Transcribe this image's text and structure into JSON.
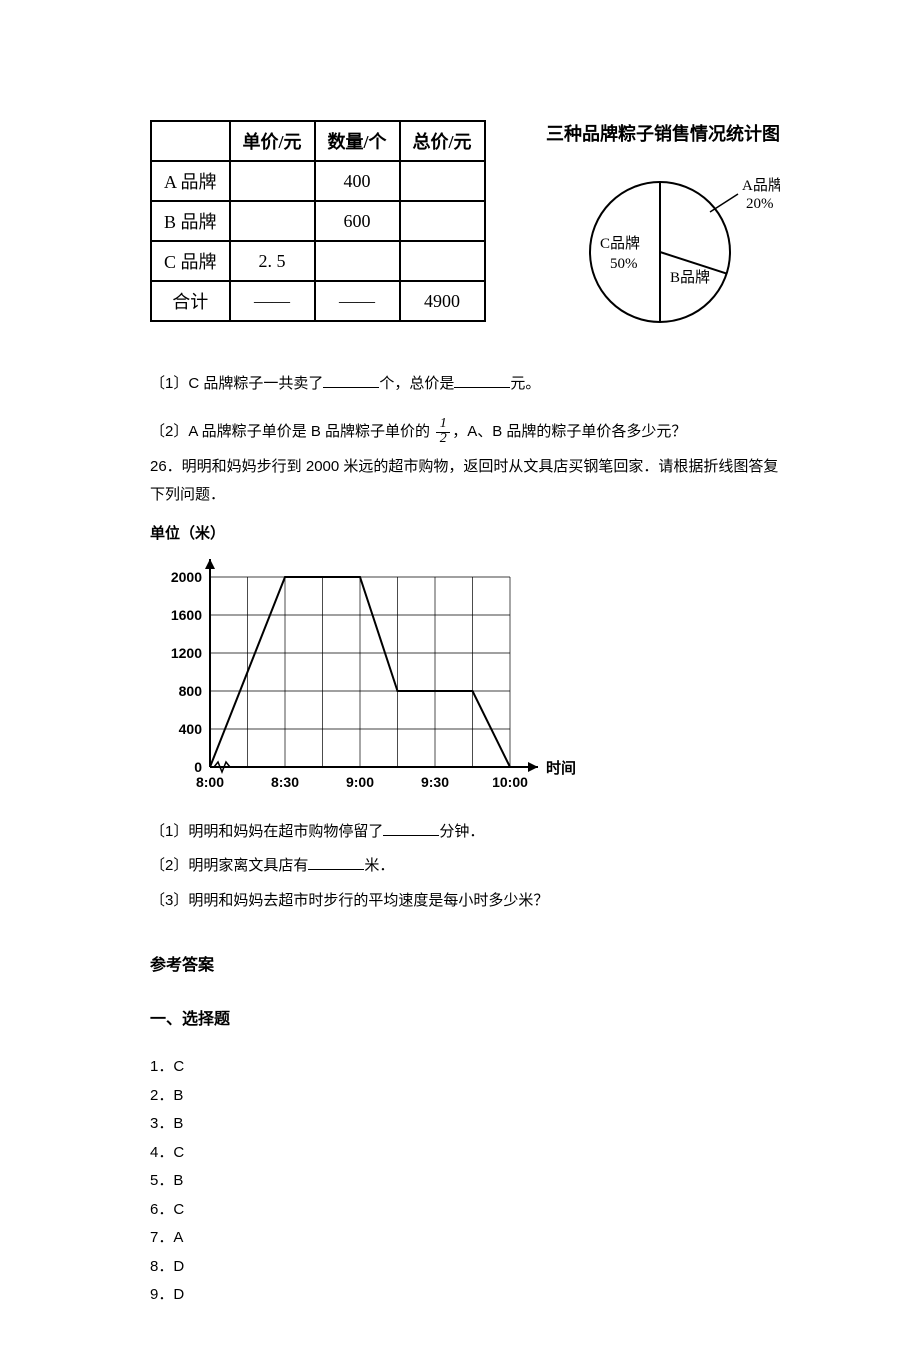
{
  "pie_chart": {
    "title": "三种品牌粽子销售情况统计图",
    "type": "pie",
    "background_color": "#ffffff",
    "slice_border_color": "#000000",
    "slices": [
      {
        "label": "A品牌",
        "value_label": "20%",
        "percent": 20,
        "color": "#ffffff"
      },
      {
        "label": "B品牌",
        "value_label": "",
        "percent": 30,
        "color": "#ffffff"
      },
      {
        "label": "C品牌",
        "value_label": "50%",
        "percent": 50,
        "color": "#ffffff"
      }
    ]
  },
  "brand_table": {
    "columns": [
      "",
      "单价/元",
      "数量/个",
      "总价/元"
    ],
    "rows": [
      [
        "A 品牌",
        "",
        "400",
        ""
      ],
      [
        "B 品牌",
        "",
        "600",
        ""
      ],
      [
        "C 品牌",
        "2. 5",
        "",
        ""
      ],
      [
        "合计",
        "——",
        "——",
        "4900"
      ]
    ]
  },
  "q1_prefix": "〔1〕C 品牌粽子一共卖了",
  "q1_mid": "个，总价是",
  "q1_suffix": "元。",
  "q2_prefix": "〔2〕A 品牌粽子单价是 B 品牌粽子单价的",
  "q2_suffix": "，A、B 品牌的粽子单价各多少元？",
  "frac_num": "1",
  "frac_den": "2",
  "q26": "26．明明和妈妈步行到 2000 米远的超市购物，返回时从文具店买钢笔回家．请根据折线图答复下列问题．",
  "line_chart": {
    "type": "line",
    "y_label": "单位（米）",
    "x_label": "时间",
    "ylim": [
      0,
      2000
    ],
    "ytick_step": 400,
    "yticks": [
      0,
      400,
      800,
      1200,
      1600,
      2000
    ],
    "xticks": [
      "8:00",
      "8:30",
      "9:00",
      "9:30",
      "10:00"
    ],
    "x_positions": [
      0,
      2,
      4,
      6,
      8
    ],
    "points": [
      {
        "x": 0,
        "y": 0
      },
      {
        "x": 2,
        "y": 2000
      },
      {
        "x": 4,
        "y": 2000
      },
      {
        "x": 5,
        "y": 800
      },
      {
        "x": 7,
        "y": 800
      },
      {
        "x": 8,
        "y": 0
      }
    ],
    "line_color": "#000000",
    "grid_color": "#000000",
    "line_width": 2,
    "marker": "none",
    "background_color": "#ffffff",
    "axis_fontsize": 14,
    "label_fontsize": 15
  },
  "q26_1_prefix": "〔1〕明明和妈妈在超市购物停留了",
  "q26_1_suffix": "分钟．",
  "q26_2_prefix": "〔2〕明明家离文具店有",
  "q26_2_suffix": "米．",
  "q26_3": "〔3〕明明和妈妈去超市时步行的平均速度是每小时多少米？",
  "answers_heading": "参考答案",
  "section_heading": "一、选择题",
  "answers": [
    "1．C",
    "2．B",
    "3．B",
    "4．C",
    "5．B",
    "6．C",
    "7．A",
    "8．D",
    "9．D"
  ]
}
